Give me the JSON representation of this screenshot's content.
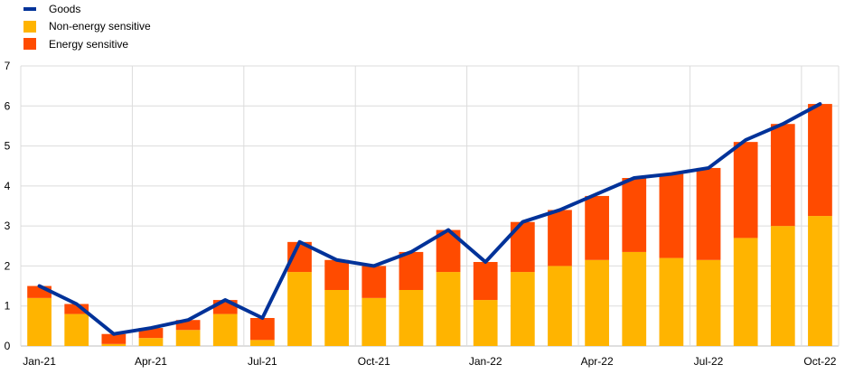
{
  "chart_data": {
    "type": "bar",
    "stacked": true,
    "categories": [
      "Jan-21",
      "Feb-21",
      "Mar-21",
      "Apr-21",
      "May-21",
      "Jun-21",
      "Jul-21",
      "Aug-21",
      "Sep-21",
      "Oct-21",
      "Nov-21",
      "Dec-21",
      "Jan-22",
      "Feb-22",
      "Mar-22",
      "Apr-22",
      "May-22",
      "Jun-22",
      "Jul-22",
      "Aug-22",
      "Sep-22",
      "Oct-22"
    ],
    "x_tick_labels": [
      "Jan-21",
      "Apr-21",
      "Jul-21",
      "Oct-21",
      "Jan-22",
      "Apr-22",
      "Jul-22",
      "Oct-22"
    ],
    "ylim": [
      0,
      7
    ],
    "y_ticks": [
      0,
      1,
      2,
      3,
      4,
      5,
      6,
      7
    ],
    "grid": true,
    "legend_position": "top-left",
    "series": [
      {
        "name": "Non-energy sensitive",
        "kind": "bar",
        "color": "#FFB400",
        "values": [
          1.2,
          0.8,
          0.05,
          0.2,
          0.4,
          0.8,
          0.15,
          1.85,
          1.4,
          1.2,
          1.4,
          1.85,
          1.15,
          1.85,
          2.0,
          2.15,
          2.35,
          2.2,
          2.15,
          2.7,
          3.0,
          3.25
        ]
      },
      {
        "name": "Energy sensitive",
        "kind": "bar",
        "color": "#FF4B00",
        "values": [
          0.3,
          0.25,
          0.25,
          0.25,
          0.25,
          0.35,
          0.55,
          0.75,
          0.75,
          0.8,
          0.95,
          1.05,
          0.95,
          1.25,
          1.4,
          1.6,
          1.85,
          2.1,
          2.3,
          2.4,
          2.55,
          2.8
        ]
      },
      {
        "name": "Goods",
        "kind": "line",
        "color": "#003299",
        "values": [
          1.5,
          1.05,
          0.3,
          0.45,
          0.65,
          1.15,
          0.7,
          2.6,
          2.15,
          2.0,
          2.35,
          2.9,
          2.1,
          3.1,
          3.4,
          3.8,
          4.2,
          4.3,
          4.45,
          5.15,
          5.55,
          6.05
        ]
      }
    ]
  },
  "legend": {
    "items": [
      {
        "label": "Goods",
        "color": "#003299",
        "kind": "line"
      },
      {
        "label": "Non-energy sensitive",
        "color": "#FFB400",
        "kind": "box"
      },
      {
        "label": "Energy sensitive",
        "color": "#FF4B00",
        "kind": "box"
      }
    ]
  }
}
